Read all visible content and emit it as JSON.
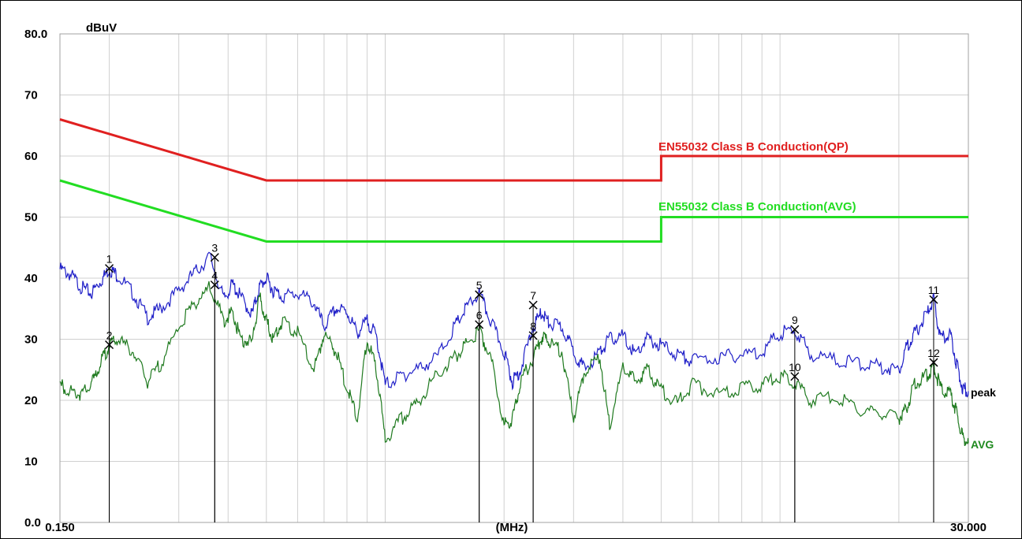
{
  "chart_data": {
    "type": "line",
    "title": "",
    "xlabel": "(MHz)",
    "ylabel": "dBuV",
    "x_scale": "log",
    "xlim": [
      0.15,
      30
    ],
    "ylim": [
      0,
      80
    ],
    "grid": true,
    "x_ticks": [
      {
        "value": 0.15,
        "label": "0.150"
      },
      {
        "value": 30,
        "label": "30.000"
      }
    ],
    "y_ticks": [
      {
        "value": 80,
        "label": "80.0"
      },
      {
        "value": 70,
        "label": "70"
      },
      {
        "value": 60,
        "label": "60"
      },
      {
        "value": 50,
        "label": "50"
      },
      {
        "value": 40,
        "label": "40"
      },
      {
        "value": 30,
        "label": "30"
      },
      {
        "value": 20,
        "label": "20"
      },
      {
        "value": 10,
        "label": "10"
      },
      {
        "value": 0,
        "label": "0.0"
      }
    ],
    "limits": [
      {
        "name": "EN55032 Class B Conduction(QP)",
        "color": "#e02020",
        "points": [
          [
            0.15,
            66
          ],
          [
            0.5,
            56
          ],
          [
            5,
            56
          ],
          [
            5,
            60
          ],
          [
            30,
            60
          ]
        ]
      },
      {
        "name": "EN55032 Class B Conduction(AVG)",
        "color": "#22dd22",
        "points": [
          [
            0.15,
            56
          ],
          [
            0.5,
            46
          ],
          [
            5,
            46
          ],
          [
            5,
            50
          ],
          [
            30,
            50
          ]
        ]
      }
    ],
    "series": [
      {
        "name": "peak",
        "color": "#2020c8",
        "x": [
          0.15,
          0.16,
          0.17,
          0.18,
          0.19,
          0.2,
          0.21,
          0.23,
          0.25,
          0.27,
          0.3,
          0.33,
          0.36,
          0.39,
          0.41,
          0.43,
          0.46,
          0.48,
          0.5,
          0.52,
          0.55,
          0.6,
          0.66,
          0.7,
          0.75,
          0.8,
          0.85,
          0.9,
          0.95,
          1.0,
          1.1,
          1.2,
          1.35,
          1.5,
          1.6,
          1.73,
          1.85,
          2.0,
          2.1,
          2.2,
          2.37,
          2.5,
          2.6,
          2.8,
          3.0,
          3.2,
          3.5,
          3.7,
          4.0,
          4.3,
          4.6,
          5.0,
          5.5,
          6.0,
          7.0,
          8.0,
          9.0,
          10.0,
          10.9,
          12.0,
          14.0,
          16.0,
          18.0,
          20.0,
          21.0,
          22.0,
          23.5,
          24.5,
          25.5,
          27.0,
          28.0,
          29.0,
          30.0
        ],
        "values": [
          41.5,
          40.5,
          38.5,
          37.5,
          39.5,
          41.5,
          40.5,
          37.5,
          33.5,
          35.0,
          38.0,
          41.0,
          43.5,
          36.5,
          39.0,
          37.0,
          34.0,
          38.5,
          40.0,
          38.0,
          37.0,
          37.5,
          36.0,
          32.0,
          35.0,
          34.5,
          31.0,
          33.0,
          30.5,
          22.5,
          24.0,
          25.0,
          27.0,
          32.0,
          35.0,
          37.5,
          33.0,
          28.0,
          23.0,
          25.0,
          32.0,
          34.5,
          32.5,
          32.0,
          28.0,
          25.0,
          28.0,
          30.0,
          30.5,
          27.5,
          30.0,
          29.0,
          27.5,
          26.5,
          27.0,
          27.5,
          28.0,
          31.0,
          31.5,
          27.5,
          26.5,
          26.0,
          25.5,
          25.0,
          29.0,
          31.0,
          34.0,
          36.5,
          30.0,
          31.0,
          26.0,
          22.0,
          21.5
        ]
      },
      {
        "name": "AVG",
        "color": "#1f7a1f",
        "x": [
          0.15,
          0.16,
          0.17,
          0.18,
          0.19,
          0.2,
          0.21,
          0.23,
          0.25,
          0.27,
          0.3,
          0.33,
          0.36,
          0.39,
          0.41,
          0.43,
          0.46,
          0.48,
          0.5,
          0.52,
          0.55,
          0.6,
          0.66,
          0.7,
          0.75,
          0.8,
          0.85,
          0.9,
          0.95,
          1.0,
          1.1,
          1.2,
          1.35,
          1.5,
          1.6,
          1.73,
          1.85,
          2.0,
          2.1,
          2.2,
          2.37,
          2.5,
          2.6,
          2.8,
          3.0,
          3.2,
          3.5,
          3.7,
          4.0,
          4.3,
          4.6,
          5.0,
          5.5,
          6.0,
          7.0,
          8.0,
          9.0,
          10.0,
          10.9,
          12.0,
          14.0,
          16.0,
          18.0,
          20.0,
          21.0,
          22.0,
          23.5,
          24.5,
          25.5,
          27.0,
          28.0,
          29.0,
          30.0
        ],
        "values": [
          22.5,
          21.5,
          21.0,
          22.5,
          26.0,
          29.0,
          30.0,
          28.0,
          23.0,
          26.0,
          32.0,
          36.0,
          38.5,
          33.0,
          34.5,
          30.0,
          29.5,
          37.0,
          33.0,
          30.0,
          33.0,
          31.0,
          25.0,
          31.0,
          28.0,
          22.0,
          17.0,
          30.0,
          25.0,
          13.5,
          17.0,
          19.5,
          24.0,
          27.0,
          29.0,
          31.5,
          27.0,
          16.0,
          17.0,
          23.0,
          27.0,
          30.5,
          29.5,
          28.0,
          17.0,
          25.0,
          27.0,
          16.0,
          25.5,
          23.0,
          25.0,
          21.5,
          19.5,
          22.5,
          21.0,
          22.0,
          22.5,
          24.0,
          23.0,
          20.0,
          20.5,
          18.5,
          18.0,
          17.0,
          19.0,
          23.0,
          24.0,
          25.5,
          22.0,
          21.0,
          18.0,
          14.0,
          13.0
        ]
      }
    ],
    "markers": [
      {
        "label": "1",
        "x": 0.2,
        "y": 41.6
      },
      {
        "label": "2",
        "x": 0.2,
        "y": 29.1
      },
      {
        "label": "3",
        "x": 0.37,
        "y": 43.4
      },
      {
        "label": "4",
        "x": 0.37,
        "y": 38.9
      },
      {
        "label": "5",
        "x": 1.73,
        "y": 37.3
      },
      {
        "label": "6",
        "x": 1.73,
        "y": 32.4
      },
      {
        "label": "7",
        "x": 2.37,
        "y": 35.6
      },
      {
        "label": "8",
        "x": 2.37,
        "y": 30.6
      },
      {
        "label": "9",
        "x": 10.9,
        "y": 31.6
      },
      {
        "label": "10",
        "x": 10.9,
        "y": 23.9
      },
      {
        "label": "11",
        "x": 24.5,
        "y": 36.5
      },
      {
        "label": "12",
        "x": 24.5,
        "y": 26.2
      }
    ]
  }
}
